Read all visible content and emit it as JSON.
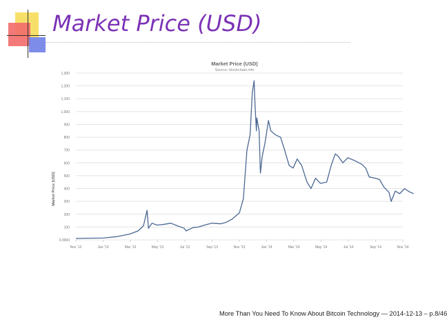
{
  "slide": {
    "title": "Market Price (USD)",
    "footer": "More Than You Need To Know About Bitcoin Technology — 2014-12-13 – p.8/46"
  },
  "colors": {
    "title": "#7b32b5",
    "line": "#4a6792",
    "grid": "#e3e3e3"
  },
  "chart_data": {
    "type": "line",
    "title": "Market Price (USD)",
    "subtitle": "Source: blockchain.info",
    "ylabel": "Market Price (USD)",
    "xlabel": "",
    "ylim": [
      0,
      1300
    ],
    "y_ticks": [
      0,
      100,
      200,
      300,
      400,
      500,
      600,
      700,
      800,
      900,
      1000,
      1100,
      1200,
      1300
    ],
    "y_tick_labels": [
      "0.0000",
      "100",
      "200",
      "300",
      "400",
      "500",
      "600",
      "700",
      "800",
      "900",
      "1,000",
      "1,100",
      "1,200",
      "1,300"
    ],
    "x_tick_labels": [
      "Nov '12",
      "Jan '13",
      "Mar '13",
      "May '13",
      "Jul '13",
      "Sep '13",
      "Nov '13",
      "Jan '14",
      "Mar '14",
      "May '14",
      "Jul '14",
      "Sep '14",
      "Nov '14"
    ],
    "series": [
      {
        "values": [
          [
            "2012-11-01",
            11
          ],
          [
            "2012-12-01",
            13
          ],
          [
            "2013-01-01",
            14
          ],
          [
            "2013-02-01",
            25
          ],
          [
            "2013-03-01",
            45
          ],
          [
            "2013-03-20",
            70
          ],
          [
            "2013-04-01",
            110
          ],
          [
            "2013-04-09",
            230
          ],
          [
            "2013-04-12",
            90
          ],
          [
            "2013-04-20",
            130
          ],
          [
            "2013-05-01",
            115
          ],
          [
            "2013-05-15",
            120
          ],
          [
            "2013-06-01",
            130
          ],
          [
            "2013-06-15",
            110
          ],
          [
            "2013-07-01",
            90
          ],
          [
            "2013-07-05",
            70
          ],
          [
            "2013-07-20",
            95
          ],
          [
            "2013-08-01",
            100
          ],
          [
            "2013-08-20",
            120
          ],
          [
            "2013-09-01",
            130
          ],
          [
            "2013-09-20",
            125
          ],
          [
            "2013-10-01",
            135
          ],
          [
            "2013-10-15",
            160
          ],
          [
            "2013-11-01",
            210
          ],
          [
            "2013-11-10",
            320
          ],
          [
            "2013-11-18",
            700
          ],
          [
            "2013-11-25",
            820
          ],
          [
            "2013-11-30",
            1150
          ],
          [
            "2013-12-04",
            1240
          ],
          [
            "2013-12-06",
            1050
          ],
          [
            "2013-12-09",
            850
          ],
          [
            "2013-12-10",
            950
          ],
          [
            "2013-12-15",
            850
          ],
          [
            "2013-12-18",
            520
          ],
          [
            "2013-12-22",
            650
          ],
          [
            "2013-12-28",
            750
          ],
          [
            "2014-01-05",
            930
          ],
          [
            "2014-01-10",
            850
          ],
          [
            "2014-01-20",
            820
          ],
          [
            "2014-02-01",
            800
          ],
          [
            "2014-02-10",
            700
          ],
          [
            "2014-02-20",
            580
          ],
          [
            "2014-03-01",
            560
          ],
          [
            "2014-03-10",
            630
          ],
          [
            "2014-03-20",
            580
          ],
          [
            "2014-04-01",
            450
          ],
          [
            "2014-04-10",
            400
          ],
          [
            "2014-04-20",
            480
          ],
          [
            "2014-05-01",
            440
          ],
          [
            "2014-05-15",
            450
          ],
          [
            "2014-05-25",
            580
          ],
          [
            "2014-06-03",
            670
          ],
          [
            "2014-06-10",
            650
          ],
          [
            "2014-06-20",
            600
          ],
          [
            "2014-07-01",
            640
          ],
          [
            "2014-07-15",
            620
          ],
          [
            "2014-08-01",
            590
          ],
          [
            "2014-08-10",
            560
          ],
          [
            "2014-08-18",
            490
          ],
          [
            "2014-09-01",
            480
          ],
          [
            "2014-09-10",
            470
          ],
          [
            "2014-09-20",
            410
          ],
          [
            "2014-10-01",
            370
          ],
          [
            "2014-10-06",
            300
          ],
          [
            "2014-10-15",
            380
          ],
          [
            "2014-10-25",
            360
          ],
          [
            "2014-11-05",
            400
          ],
          [
            "2014-11-15",
            375
          ],
          [
            "2014-11-25",
            360
          ]
        ]
      }
    ],
    "grid": true,
    "legend": "none"
  }
}
